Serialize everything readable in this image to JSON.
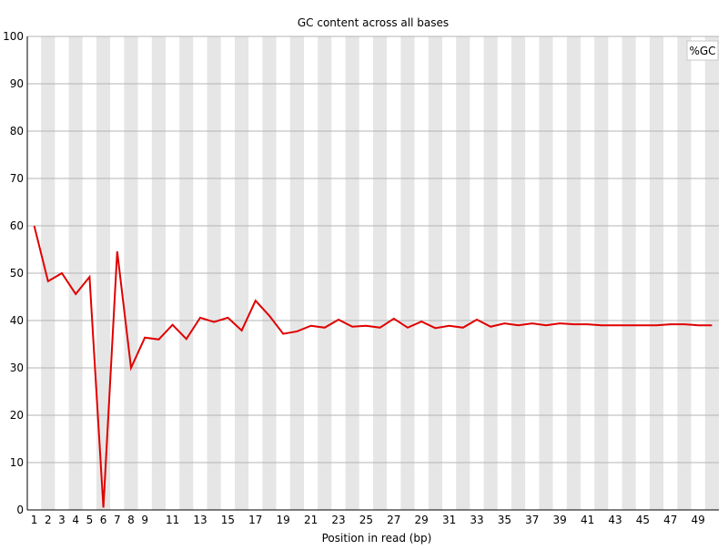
{
  "chart_data": {
    "type": "line",
    "title": "GC content across all bases",
    "xlabel": "Position in read (bp)",
    "ylabel": "",
    "ylim": [
      0,
      100
    ],
    "yticks": [
      0,
      10,
      20,
      30,
      40,
      50,
      60,
      70,
      80,
      90,
      100
    ],
    "x_tick_labels": [
      "1",
      "2",
      "3",
      "4",
      "5",
      "6",
      "7",
      "8",
      "9",
      "11",
      "13",
      "15",
      "17",
      "19",
      "21",
      "23",
      "25",
      "27",
      "29",
      "31",
      "33",
      "35",
      "37",
      "39",
      "41",
      "43",
      "45",
      "47",
      "49"
    ],
    "x": [
      1,
      2,
      3,
      4,
      5,
      6,
      7,
      8,
      9,
      10,
      11,
      12,
      13,
      14,
      15,
      16,
      17,
      18,
      19,
      20,
      21,
      22,
      23,
      24,
      25,
      26,
      27,
      28,
      29,
      30,
      31,
      32,
      33,
      34,
      35,
      36,
      37,
      38,
      39,
      40,
      41,
      42,
      43,
      44,
      45,
      46,
      47,
      48,
      49,
      50
    ],
    "grid": true,
    "legend_position": "top-right",
    "series": [
      {
        "name": "%GC",
        "color": "#e00000",
        "values": [
          60.0,
          48.3,
          50.0,
          45.6,
          49.2,
          0.5,
          54.6,
          30.0,
          36.4,
          36.0,
          39.1,
          36.1,
          40.6,
          39.7,
          40.6,
          37.9,
          44.2,
          41.0,
          37.2,
          37.7,
          38.9,
          38.5,
          40.2,
          38.7,
          38.9,
          38.5,
          40.4,
          38.5,
          39.8,
          38.4,
          38.9,
          38.5,
          40.2,
          38.7,
          39.4,
          39.0,
          39.4,
          39.0,
          39.4,
          39.2,
          39.2,
          39.0,
          39.0,
          39.0,
          39.0,
          39.0,
          39.2,
          39.2,
          39.0,
          39.0
        ]
      }
    ]
  }
}
